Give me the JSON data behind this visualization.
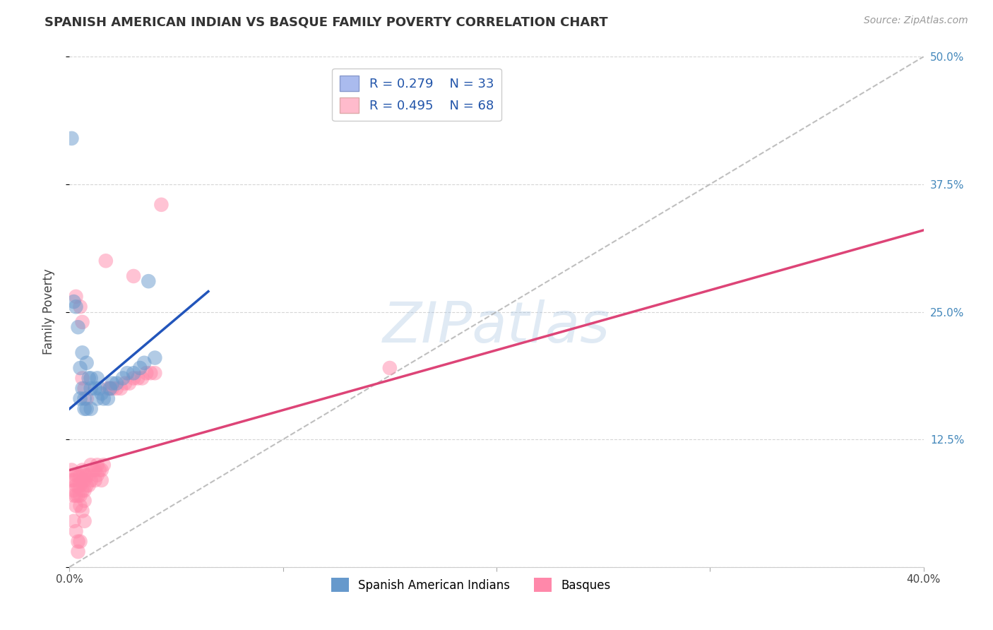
{
  "title": "SPANISH AMERICAN INDIAN VS BASQUE FAMILY POVERTY CORRELATION CHART",
  "source": "Source: ZipAtlas.com",
  "xlabel": "",
  "ylabel": "Family Poverty",
  "xmin": 0.0,
  "xmax": 0.4,
  "ymin": 0.0,
  "ymax": 0.5,
  "yticks": [
    0.0,
    0.125,
    0.25,
    0.375,
    0.5
  ],
  "xticks": [
    0.0,
    0.1,
    0.2,
    0.3,
    0.4
  ],
  "blue_R": 0.279,
  "blue_N": 33,
  "pink_R": 0.495,
  "pink_N": 68,
  "blue_color": "#6699CC",
  "pink_color": "#FF88AA",
  "blue_line_color": "#2255BB",
  "pink_line_color": "#DD4477",
  "legend_label_blue": "Spanish American Indians",
  "legend_label_pink": "Basques",
  "watermark": "ZIPatlas",
  "background_color": "#FFFFFF",
  "grid_color": "#CCCCCC",
  "blue_line": [
    [
      0.0,
      0.155
    ],
    [
      0.065,
      0.27
    ]
  ],
  "pink_line": [
    [
      0.0,
      0.095
    ],
    [
      0.4,
      0.33
    ]
  ],
  "blue_scatter": [
    [
      0.001,
      0.42
    ],
    [
      0.002,
      0.26
    ],
    [
      0.003,
      0.255
    ],
    [
      0.005,
      0.195
    ],
    [
      0.004,
      0.235
    ],
    [
      0.006,
      0.175
    ],
    [
      0.006,
      0.21
    ],
    [
      0.007,
      0.165
    ],
    [
      0.008,
      0.2
    ],
    [
      0.009,
      0.185
    ],
    [
      0.01,
      0.175
    ],
    [
      0.01,
      0.185
    ],
    [
      0.012,
      0.175
    ],
    [
      0.013,
      0.185
    ],
    [
      0.013,
      0.165
    ],
    [
      0.014,
      0.175
    ],
    [
      0.015,
      0.17
    ],
    [
      0.016,
      0.165
    ],
    [
      0.018,
      0.165
    ],
    [
      0.019,
      0.175
    ],
    [
      0.02,
      0.18
    ],
    [
      0.022,
      0.18
    ],
    [
      0.025,
      0.185
    ],
    [
      0.027,
      0.19
    ],
    [
      0.03,
      0.19
    ],
    [
      0.033,
      0.195
    ],
    [
      0.035,
      0.2
    ],
    [
      0.037,
      0.28
    ],
    [
      0.04,
      0.205
    ],
    [
      0.005,
      0.165
    ],
    [
      0.007,
      0.155
    ],
    [
      0.008,
      0.155
    ],
    [
      0.01,
      0.155
    ]
  ],
  "pink_scatter": [
    [
      0.001,
      0.095
    ],
    [
      0.001,
      0.085
    ],
    [
      0.002,
      0.085
    ],
    [
      0.002,
      0.075
    ],
    [
      0.002,
      0.07
    ],
    [
      0.003,
      0.09
    ],
    [
      0.003,
      0.08
    ],
    [
      0.003,
      0.07
    ],
    [
      0.003,
      0.06
    ],
    [
      0.004,
      0.09
    ],
    [
      0.004,
      0.08
    ],
    [
      0.004,
      0.07
    ],
    [
      0.005,
      0.09
    ],
    [
      0.005,
      0.08
    ],
    [
      0.005,
      0.07
    ],
    [
      0.005,
      0.06
    ],
    [
      0.006,
      0.095
    ],
    [
      0.006,
      0.085
    ],
    [
      0.006,
      0.075
    ],
    [
      0.007,
      0.09
    ],
    [
      0.007,
      0.085
    ],
    [
      0.007,
      0.075
    ],
    [
      0.007,
      0.065
    ],
    [
      0.008,
      0.09
    ],
    [
      0.008,
      0.08
    ],
    [
      0.009,
      0.09
    ],
    [
      0.009,
      0.08
    ],
    [
      0.01,
      0.1
    ],
    [
      0.01,
      0.085
    ],
    [
      0.011,
      0.095
    ],
    [
      0.012,
      0.095
    ],
    [
      0.012,
      0.085
    ],
    [
      0.013,
      0.1
    ],
    [
      0.013,
      0.09
    ],
    [
      0.014,
      0.095
    ],
    [
      0.015,
      0.095
    ],
    [
      0.015,
      0.085
    ],
    [
      0.016,
      0.1
    ],
    [
      0.017,
      0.3
    ],
    [
      0.018,
      0.175
    ],
    [
      0.019,
      0.175
    ],
    [
      0.02,
      0.175
    ],
    [
      0.022,
      0.175
    ],
    [
      0.024,
      0.175
    ],
    [
      0.026,
      0.18
    ],
    [
      0.028,
      0.18
    ],
    [
      0.03,
      0.185
    ],
    [
      0.032,
      0.185
    ],
    [
      0.034,
      0.185
    ],
    [
      0.036,
      0.19
    ],
    [
      0.038,
      0.19
    ],
    [
      0.04,
      0.19
    ],
    [
      0.03,
      0.285
    ],
    [
      0.043,
      0.355
    ],
    [
      0.15,
      0.195
    ],
    [
      0.003,
      0.265
    ],
    [
      0.005,
      0.255
    ],
    [
      0.006,
      0.24
    ],
    [
      0.006,
      0.185
    ],
    [
      0.007,
      0.175
    ],
    [
      0.008,
      0.165
    ],
    [
      0.002,
      0.045
    ],
    [
      0.003,
      0.035
    ],
    [
      0.004,
      0.025
    ],
    [
      0.004,
      0.015
    ],
    [
      0.005,
      0.025
    ],
    [
      0.006,
      0.055
    ],
    [
      0.007,
      0.045
    ]
  ]
}
